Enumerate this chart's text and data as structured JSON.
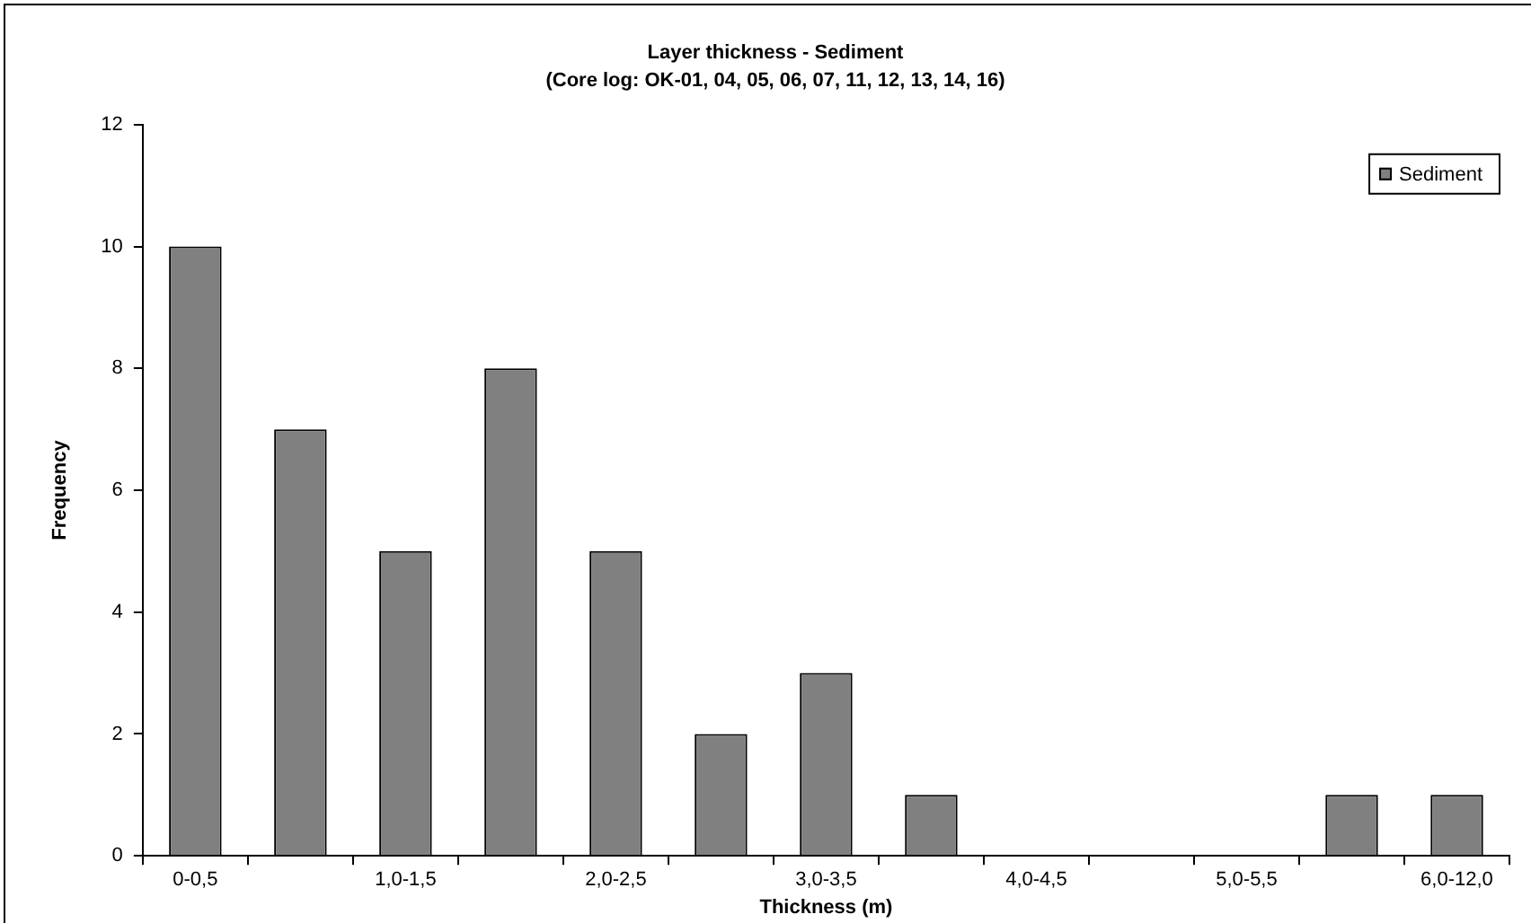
{
  "chart_data": {
    "type": "bar",
    "title": "Layer thickness - Sediment",
    "subtitle": "(Core log: OK-01, 04, 05, 06, 07, 11, 12, 13, 14, 16)",
    "xlabel": "Thickness (m)",
    "ylabel": "Frequency",
    "categories": [
      "0-0,5",
      null,
      "1,0-1,5",
      null,
      "2,0-2,5",
      null,
      "3,0-3,5",
      null,
      "4,0-4,5",
      null,
      "5,0-5,5",
      null,
      "6,0-12,0"
    ],
    "series": [
      {
        "name": "Sediment",
        "color": "#808080",
        "values": [
          10,
          7,
          5,
          8,
          5,
          2,
          3,
          1,
          0,
          0,
          0,
          1,
          1
        ]
      }
    ],
    "ylim": [
      0,
      12
    ],
    "yticks": [
      0,
      2,
      4,
      6,
      8,
      10,
      12
    ],
    "grid": false,
    "legend": "top right"
  }
}
